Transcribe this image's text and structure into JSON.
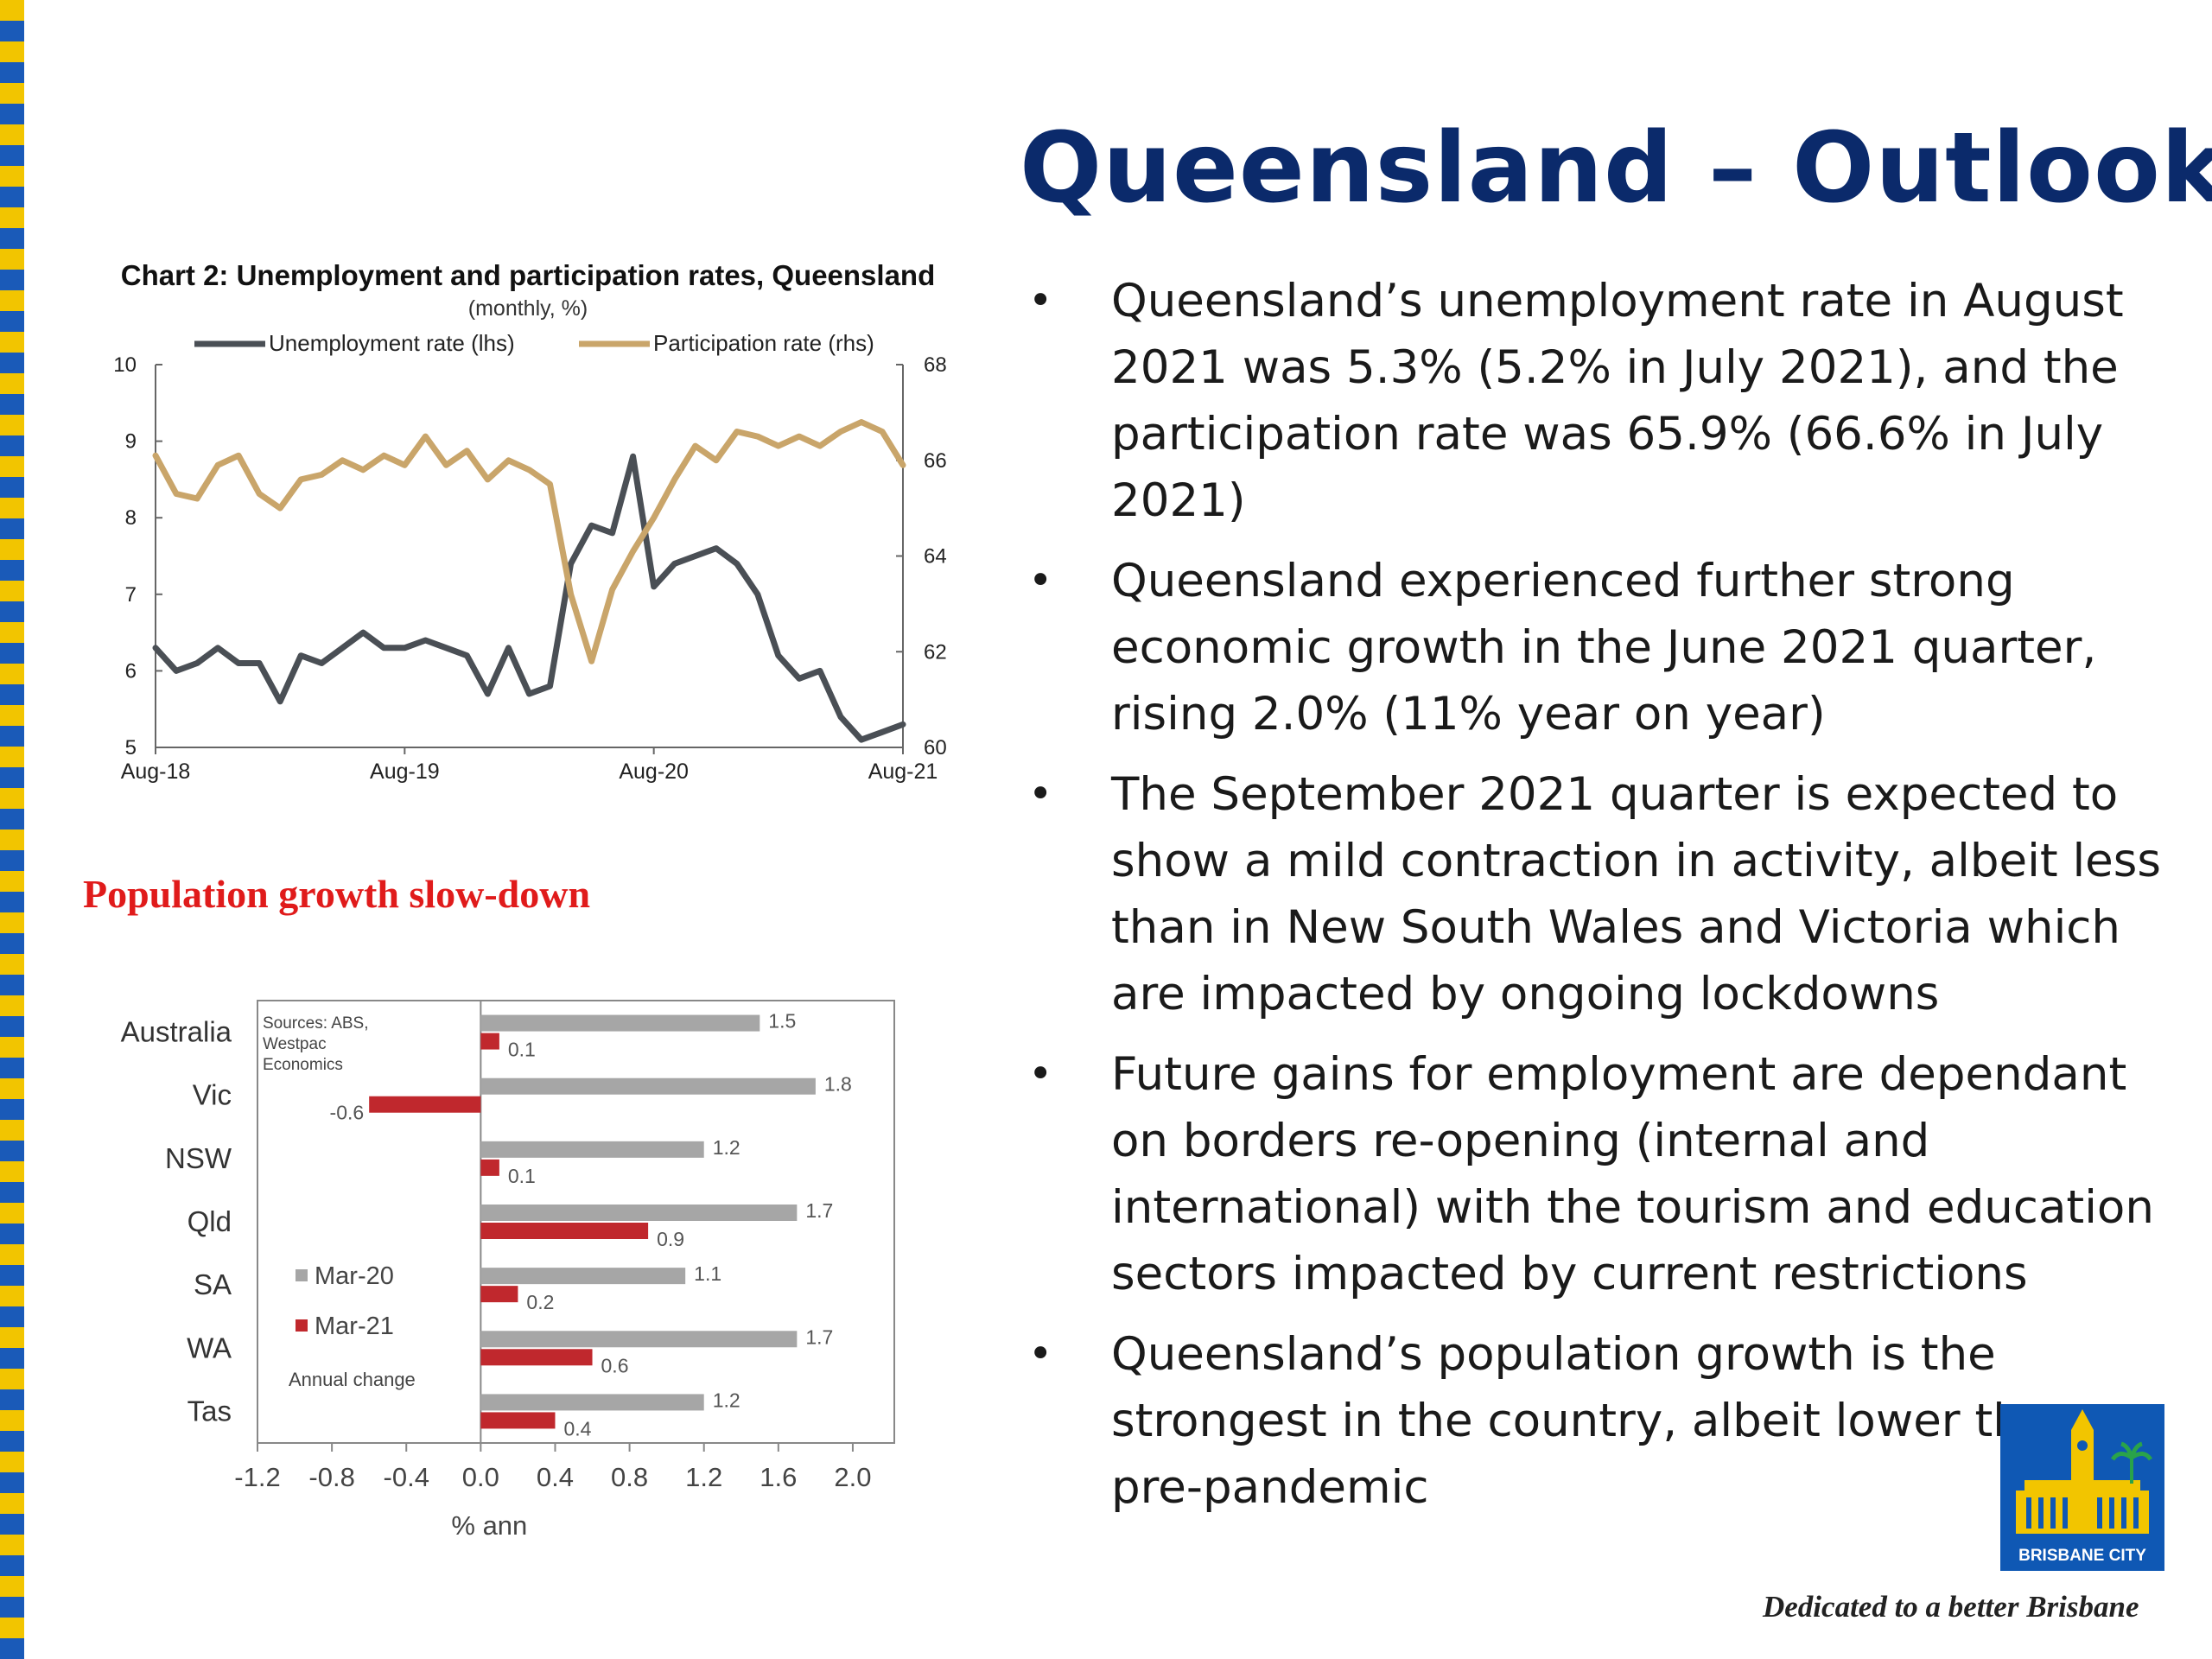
{
  "slide": {
    "title": "Queensland – Outlook",
    "tagline": "Dedicated to a better Brisbane",
    "logo_text": "BRISBANE CITY",
    "colors": {
      "title": "#0b2a6b",
      "stripe_yellow": "#f2c500",
      "stripe_blue": "#1a5ab8",
      "logo_blue": "#0f58b4"
    }
  },
  "bullets": [
    "Queensland’s unemployment rate in August 2021 was 5.3% (5.2% in July 2021), and the participation rate was 65.9% (66.6% in July 2021)",
    "Queensland experienced further strong economic growth in the June 2021 quarter, rising 2.0% (11% year on year)",
    "The September 2021 quarter is expected to show a mild contraction in activity, albeit less than in New South Wales and Victoria which are impacted by ongoing lockdowns",
    "Future gains for employment are dependant on borders re-opening (internal and international) with the tourism and education sectors impacted by current restrictions",
    "Queensland’s population growth is the strongest in the country, albeit lower than pre-pandemic"
  ],
  "section_heading": "Population growth slow-down",
  "chart_data": [
    {
      "type": "line",
      "title": "Chart 2: Unemployment and participation rates, Queensland",
      "subtitle": "(monthly, %)",
      "x_ticks": [
        "Aug-18",
        "Aug-19",
        "Aug-20",
        "Aug-21"
      ],
      "x_tick_index": [
        0,
        12,
        24,
        36
      ],
      "ylim_left": [
        5,
        10
      ],
      "yticks_left": [
        5,
        6,
        7,
        8,
        9,
        10
      ],
      "ylim_right": [
        60,
        68
      ],
      "yticks_right": [
        60,
        62,
        64,
        66,
        68
      ],
      "grid": false,
      "legend": "top",
      "series": [
        {
          "name": "Unemployment rate (lhs)",
          "axis": "left",
          "color": "#4a4f55",
          "values": [
            6.3,
            6.0,
            6.1,
            6.3,
            6.1,
            6.1,
            5.6,
            6.2,
            6.1,
            6.3,
            6.5,
            6.3,
            6.3,
            6.4,
            6.3,
            6.2,
            5.7,
            6.3,
            5.7,
            5.8,
            7.4,
            7.9,
            7.8,
            8.8,
            7.1,
            7.4,
            7.5,
            7.6,
            7.4,
            7.0,
            6.2,
            5.9,
            6.0,
            5.4,
            5.1,
            5.2,
            5.3
          ]
        },
        {
          "name": "Participation rate (rhs)",
          "axis": "right",
          "color": "#c9a56a",
          "values": [
            66.1,
            65.3,
            65.2,
            65.9,
            66.1,
            65.3,
            65.0,
            65.6,
            65.7,
            66.0,
            65.8,
            66.1,
            65.9,
            66.5,
            65.9,
            66.2,
            65.6,
            66.0,
            65.8,
            65.5,
            63.2,
            61.8,
            63.3,
            64.1,
            64.8,
            65.6,
            66.3,
            66.0,
            66.6,
            66.5,
            66.3,
            66.5,
            66.3,
            66.6,
            66.8,
            66.6,
            65.9
          ]
        }
      ]
    },
    {
      "type": "bar",
      "orientation": "horizontal",
      "categories": [
        "Australia",
        "Vic",
        "NSW",
        "Qld",
        "SA",
        "WA",
        "Tas"
      ],
      "xlabel": "% ann",
      "xlim": [
        -1.2,
        2.2
      ],
      "xticks": [
        "-1.2",
        "-0.8",
        "-0.4",
        "0.0",
        "0.4",
        "0.8",
        "1.2",
        "1.6",
        "2.0"
      ],
      "xtick_values": [
        -1.2,
        -0.8,
        -0.4,
        0.0,
        0.4,
        0.8,
        1.2,
        1.6,
        2.0
      ],
      "grid": false,
      "legend": "left",
      "legend_note": "Annual change",
      "source_note": "Sources: ABS, Westpac Economics",
      "series": [
        {
          "name": "Mar-20",
          "color": "#a6a6a6",
          "values": [
            1.5,
            1.8,
            1.2,
            1.7,
            1.1,
            1.7,
            1.2
          ],
          "labels": [
            "1.5",
            "1.8",
            "1.2",
            "1.7",
            "1.1",
            "1.7",
            "1.2"
          ]
        },
        {
          "name": "Mar-21",
          "color": "#c0282d",
          "values": [
            0.1,
            -0.6,
            0.1,
            0.9,
            0.2,
            0.6,
            0.4
          ],
          "labels": [
            "0.1",
            "-0.6",
            "0.1",
            "0.9",
            "0.2",
            "0.6",
            "0.4"
          ]
        }
      ]
    }
  ]
}
